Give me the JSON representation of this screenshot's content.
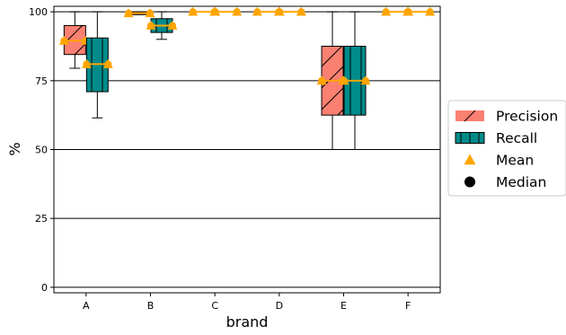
{
  "chart_data": {
    "type": "box",
    "xlabel": "brand",
    "ylabel": "%",
    "ylim": [
      -2,
      102
    ],
    "yticks": [
      0,
      25,
      50,
      75,
      100
    ],
    "grid": "horizontal",
    "legend_position": "right",
    "categories": [
      "A",
      "B",
      "C",
      "D",
      "E",
      "F"
    ],
    "colors": {
      "precision": "#FA8072",
      "recall": "#008B8B",
      "stat_marker": "#FFA500",
      "median_line": "#FFA500",
      "median_legend": "#000000"
    },
    "series": [
      {
        "name": "Precision",
        "hatch": "/",
        "boxes": [
          {
            "category": "A",
            "whisker_low": 79.5,
            "q1": 84.5,
            "median": 89.5,
            "q3": 95,
            "whisker_high": 100,
            "mean": 89.5
          },
          {
            "category": "B",
            "whisker_low": 99,
            "q1": 99,
            "median": 99.5,
            "q3": 100,
            "whisker_high": 100,
            "mean": 99.5
          },
          {
            "category": "C",
            "whisker_low": 100,
            "q1": 100,
            "median": 100,
            "q3": 100,
            "whisker_high": 100,
            "mean": 100
          },
          {
            "category": "D",
            "whisker_low": 100,
            "q1": 100,
            "median": 100,
            "q3": 100,
            "whisker_high": 100,
            "mean": 100
          },
          {
            "category": "E",
            "whisker_low": 50,
            "q1": 62.5,
            "median": 75,
            "q3": 87.5,
            "whisker_high": 100,
            "mean": 75
          },
          {
            "category": "F",
            "whisker_low": 100,
            "q1": 100,
            "median": 100,
            "q3": 100,
            "whisker_high": 100,
            "mean": 100
          }
        ]
      },
      {
        "name": "Recall",
        "hatch": "|",
        "boxes": [
          {
            "category": "A",
            "whisker_low": 61.5,
            "q1": 71,
            "median": 81,
            "q3": 90.5,
            "whisker_high": 100,
            "mean": 81
          },
          {
            "category": "B",
            "whisker_low": 90,
            "q1": 92.5,
            "median": 95,
            "q3": 97.5,
            "whisker_high": 100,
            "mean": 95
          },
          {
            "category": "C",
            "whisker_low": 100,
            "q1": 100,
            "median": 100,
            "q3": 100,
            "whisker_high": 100,
            "mean": 100
          },
          {
            "category": "D",
            "whisker_low": 100,
            "q1": 100,
            "median": 100,
            "q3": 100,
            "whisker_high": 100,
            "mean": 100
          },
          {
            "category": "E",
            "whisker_low": 50,
            "q1": 62.5,
            "median": 75,
            "q3": 87.5,
            "whisker_high": 100,
            "mean": 75
          },
          {
            "category": "F",
            "whisker_low": 100,
            "q1": 100,
            "median": 100,
            "q3": 100,
            "whisker_high": 100,
            "mean": 100
          }
        ]
      }
    ],
    "legend": [
      {
        "label": "Precision",
        "kind": "precision-patch"
      },
      {
        "label": "Recall",
        "kind": "recall-patch"
      },
      {
        "label": "Mean",
        "kind": "triangle-marker"
      },
      {
        "label": "Median",
        "kind": "circle-marker"
      }
    ]
  }
}
